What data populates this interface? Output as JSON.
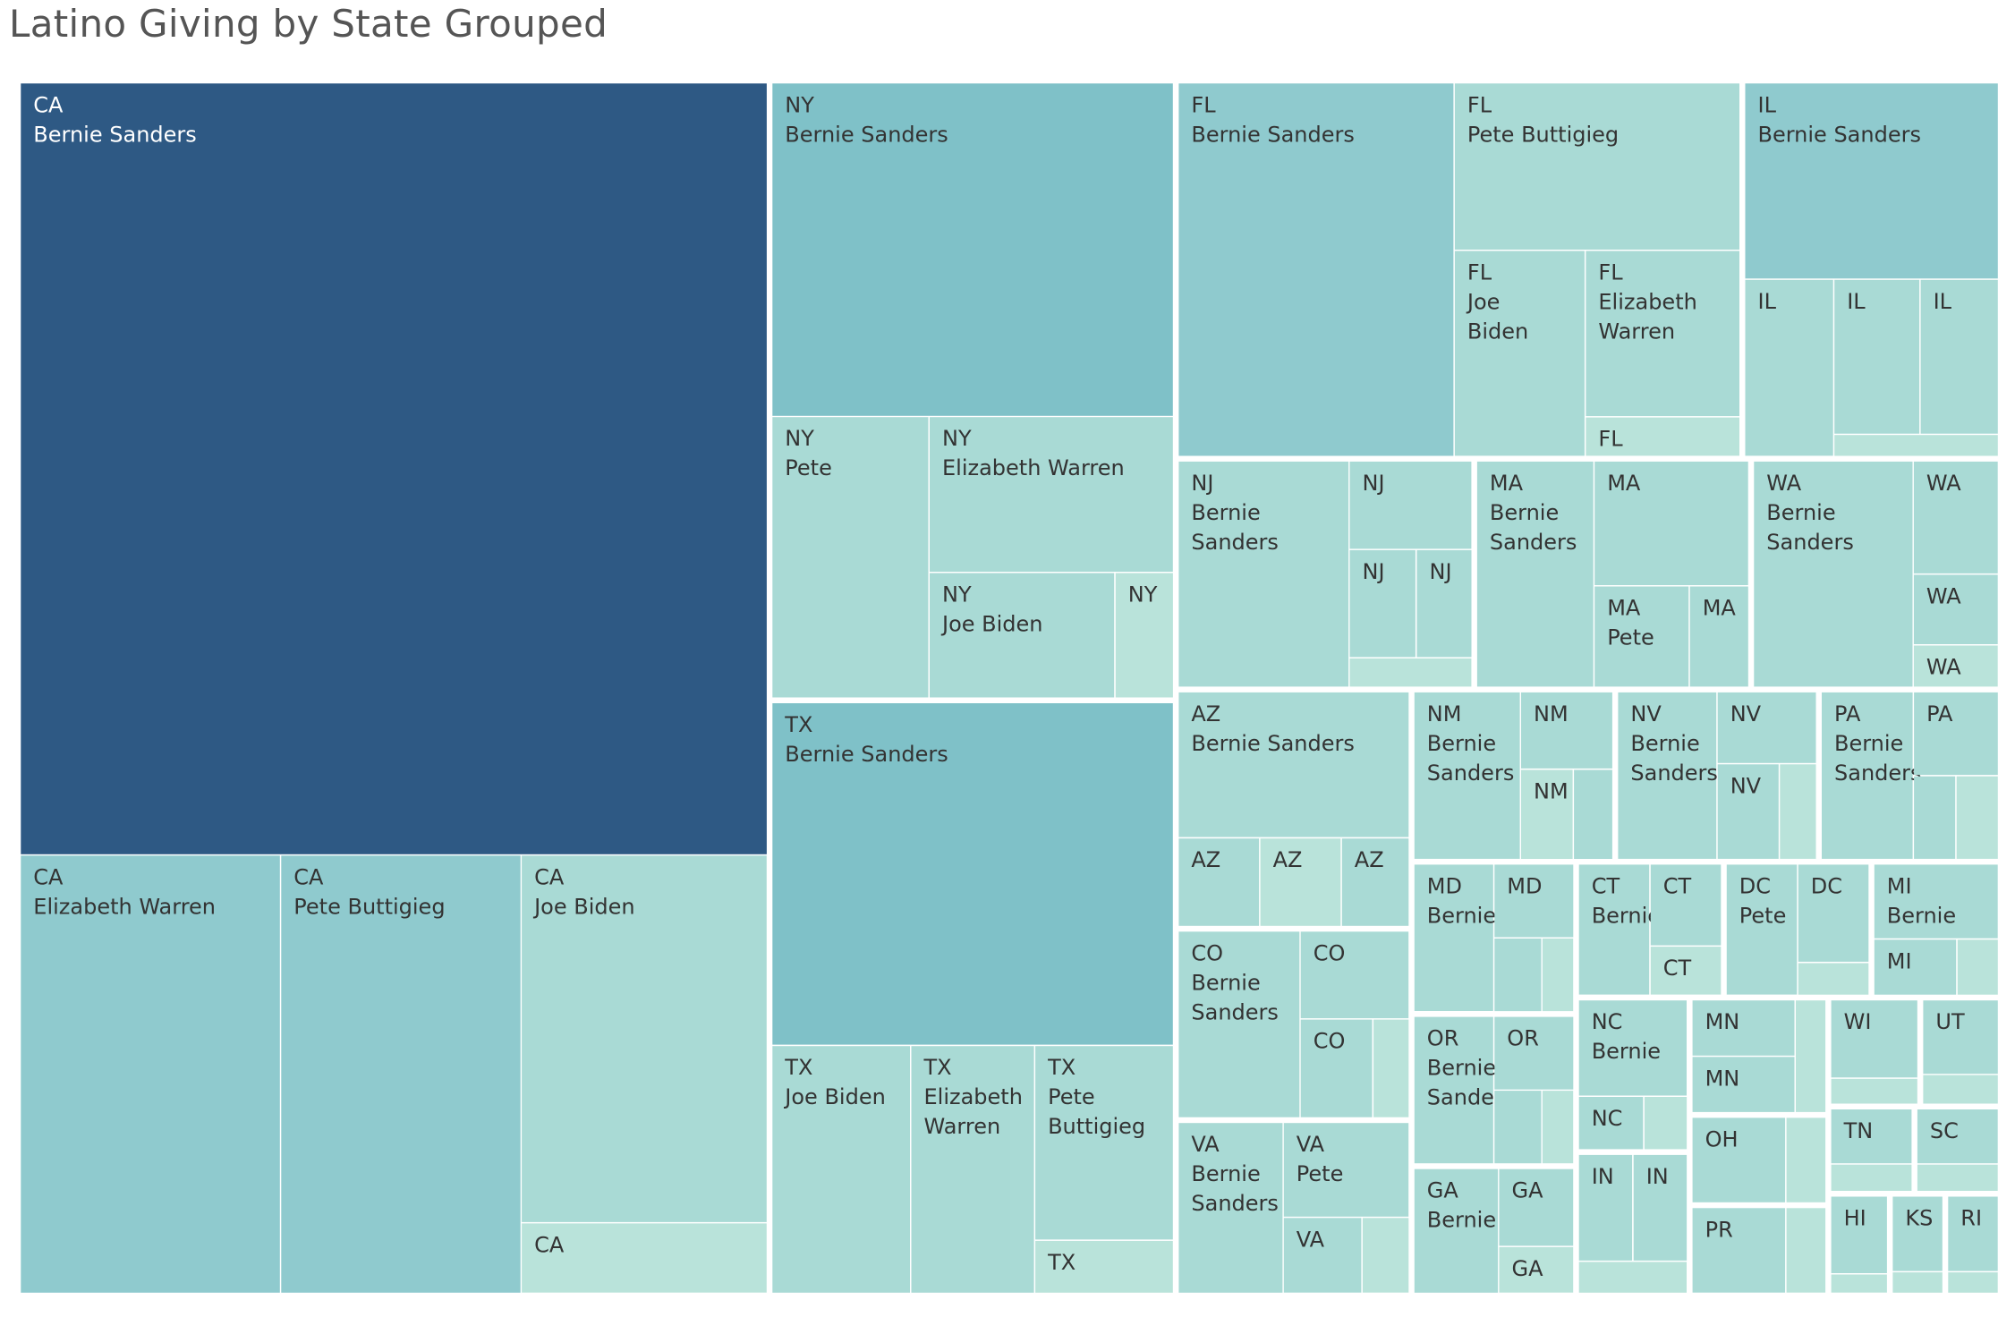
{
  "title": "Latino Giving by State Grouped",
  "colors": {
    "darkest": "#2E5984",
    "dark": "#7FC1C8",
    "mid": "#8FCACE",
    "light": "#A9DAD5",
    "lightest": "#B9E3DA",
    "cell_border": "#ffffff",
    "label_on_dark": "#ffffff",
    "label_on_light": "#333333"
  },
  "chart_data": {
    "type": "treemap",
    "grouping": "state",
    "size_measure": "giving",
    "groups": [
      {
        "state": "CA",
        "candidates": [
          {
            "name": "Bernie Sanders",
            "label": "Bernie Sanders",
            "value": 46.5,
            "shade": "darkest"
          },
          {
            "name": "Elizabeth Warren",
            "label": "Elizabeth Warren",
            "value": 9.2,
            "shade": "mid"
          },
          {
            "name": "Pete Buttigieg",
            "label": "Pete Buttigieg",
            "value": 8.5,
            "shade": "mid"
          },
          {
            "name": "Joe Biden",
            "label": "Joe Biden",
            "value": 7.3,
            "shade": "light"
          },
          {
            "name": "",
            "label": "",
            "value": 1.4,
            "shade": "lightest"
          }
        ]
      },
      {
        "state": "TX",
        "candidates": [
          {
            "name": "Bernie Sanders",
            "label": "Bernie Sanders",
            "value": 11.2,
            "shade": "dark"
          },
          {
            "name": "Elizabeth Warren",
            "label": "Elizabeth Warren",
            "value": 2.5,
            "shade": "light"
          },
          {
            "name": "Pete Buttigieg",
            "label": "Pete Buttigieg",
            "value": 2.2,
            "shade": "light"
          },
          {
            "name": "Joe Biden",
            "label": "Joe Biden",
            "value": 2.8,
            "shade": "light"
          },
          {
            "name": "",
            "label": "",
            "value": 0.6,
            "shade": "lightest"
          }
        ]
      },
      {
        "state": "NY",
        "candidates": [
          {
            "name": "Bernie Sanders",
            "label": "Bernie Sanders",
            "value": 10.9,
            "shade": "dark"
          },
          {
            "name": "Elizabeth Warren",
            "label": "Elizabeth Warren",
            "value": 3.1,
            "shade": "light"
          },
          {
            "name": "Pete",
            "label": "Pete",
            "value": 3.6,
            "shade": "light"
          },
          {
            "name": "Joe Biden",
            "label": "Joe Biden",
            "value": 1.9,
            "shade": "light"
          },
          {
            "name": "",
            "label": "",
            "value": 0.6,
            "shade": "lightest"
          }
        ]
      },
      {
        "state": "FL",
        "candidates": [
          {
            "name": "Bernie Sanders",
            "label": "Bernie Sanders",
            "value": 8.4,
            "shade": "mid"
          },
          {
            "name": "Pete Buttigieg",
            "label": "Pete Buttigieg",
            "value": 3.9,
            "shade": "light"
          },
          {
            "name": "Elizabeth Warren",
            "label": "Elizabeth Warren",
            "value": 2.1,
            "shade": "light"
          },
          {
            "name": "Joe Biden",
            "label": "Joe Biden",
            "value": 2.2,
            "shade": "light"
          },
          {
            "name": "",
            "label": "",
            "value": 0.5,
            "shade": "lightest"
          }
        ]
      },
      {
        "state": "IL",
        "candidates": [
          {
            "name": "Bernie Sanders",
            "label": "Bernie Sanders",
            "value": 4.1,
            "shade": "mid"
          },
          {
            "name": "",
            "label": "",
            "value": 1.3,
            "shade": "light"
          },
          {
            "name": "",
            "label": "",
            "value": 1.0,
            "shade": "light"
          },
          {
            "name": "",
            "label": "",
            "value": 1.1,
            "shade": "light"
          },
          {
            "name": "",
            "label": "",
            "value": 0.3,
            "shade": "lightest"
          }
        ]
      },
      {
        "state": "NJ",
        "candidates": [
          {
            "name": "Bernie Sanders",
            "label": "Bernie Sanders",
            "value": 3.2,
            "shade": "light"
          },
          {
            "name": "",
            "label": "",
            "value": 0.9,
            "shade": "light"
          },
          {
            "name": "",
            "label": "",
            "value": 0.6,
            "shade": "light"
          },
          {
            "name": "",
            "label": "",
            "value": 0.5,
            "shade": "light"
          },
          {
            "name": "",
            "label": "",
            "value": 0.3,
            "shade": "lightest"
          }
        ]
      },
      {
        "state": "WA",
        "candidates": [
          {
            "name": "Bernie Sanders",
            "label": "Bernie Sanders",
            "value": 3.0,
            "shade": "light"
          },
          {
            "name": "",
            "label": "",
            "value": 0.8,
            "shade": "light"
          },
          {
            "name": "",
            "label": "",
            "value": 0.5,
            "shade": "light"
          },
          {
            "name": "",
            "label": "",
            "value": 0.3,
            "shade": "lightest"
          }
        ]
      },
      {
        "state": "MA",
        "candidates": [
          {
            "name": "Bernie Sanders",
            "label": "Bernie Sanders",
            "value": 2.2,
            "shade": "light"
          },
          {
            "name": "",
            "label": "",
            "value": 1.6,
            "shade": "light"
          },
          {
            "name": "Pete",
            "label": "Pete",
            "value": 0.8,
            "shade": "light"
          },
          {
            "name": "",
            "label": "",
            "value": 0.5,
            "shade": "light"
          }
        ]
      },
      {
        "state": "AZ",
        "candidates": [
          {
            "name": "Bernie Sanders",
            "label": "Bernie Sanders",
            "value": 2.8,
            "shade": "light"
          },
          {
            "name": "",
            "label": "",
            "value": 0.6,
            "shade": "light"
          },
          {
            "name": "",
            "label": "",
            "value": 0.5,
            "shade": "light"
          },
          {
            "name": "",
            "label": "",
            "value": 0.6,
            "shade": "lightest"
          }
        ]
      },
      {
        "state": "CO",
        "candidates": [
          {
            "name": "Bernie Sanders",
            "label": "Bernie Sanders",
            "value": 1.9,
            "shade": "light"
          },
          {
            "name": "",
            "label": "",
            "value": 0.8,
            "shade": "light"
          },
          {
            "name": "",
            "label": "",
            "value": 0.6,
            "shade": "light"
          },
          {
            "name": "",
            "label": "",
            "value": 0.3,
            "shade": "lightest"
          }
        ]
      },
      {
        "state": "VA",
        "candidates": [
          {
            "name": "Bernie Sanders",
            "label": "Bernie Sanders",
            "value": 1.5,
            "shade": "light"
          },
          {
            "name": "Pete",
            "label": "Pete",
            "value": 1.0,
            "shade": "light"
          },
          {
            "name": "",
            "label": "",
            "value": 0.5,
            "shade": "light"
          },
          {
            "name": "",
            "label": "",
            "value": 0.3,
            "shade": "lightest"
          }
        ]
      },
      {
        "state": "NM",
        "candidates": [
          {
            "name": "Bernie Sanders",
            "label": "Bernie Sanders",
            "value": 1.5,
            "shade": "light"
          },
          {
            "name": "",
            "label": "",
            "value": 0.6,
            "shade": "light"
          },
          {
            "name": "",
            "label": "",
            "value": 0.3,
            "shade": "light"
          },
          {
            "name": "",
            "label": "",
            "value": 0.4,
            "shade": "lightest"
          }
        ]
      },
      {
        "state": "NV",
        "candidates": [
          {
            "name": "Bernie Sanders",
            "label": "Bernie Sanders",
            "value": 1.4,
            "shade": "light"
          },
          {
            "name": "",
            "label": "",
            "value": 0.6,
            "shade": "light"
          },
          {
            "name": "",
            "label": "",
            "value": 0.5,
            "shade": "light"
          },
          {
            "name": "",
            "label": "",
            "value": 0.3,
            "shade": "lightest"
          }
        ]
      },
      {
        "state": "PA",
        "candidates": [
          {
            "name": "Bernie Sanders",
            "label": "Bernie Sanders",
            "value": 1.3,
            "shade": "light"
          },
          {
            "name": "",
            "label": "",
            "value": 0.6,
            "shade": "light"
          },
          {
            "name": "",
            "label": "",
            "value": 0.3,
            "shade": "light"
          },
          {
            "name": "",
            "label": "",
            "value": 0.3,
            "shade": "lightest"
          }
        ]
      },
      {
        "state": "MD",
        "candidates": [
          {
            "name": "Bernie",
            "label": "Bernie",
            "value": 1.0,
            "shade": "light"
          },
          {
            "name": "",
            "label": "",
            "value": 0.5,
            "shade": "light"
          },
          {
            "name": "",
            "label": "",
            "value": 0.3,
            "shade": "light"
          },
          {
            "name": "",
            "label": "",
            "value": 0.2,
            "shade": "lightest"
          }
        ]
      },
      {
        "state": "OR",
        "candidates": [
          {
            "name": "Bernie Sanders",
            "label": "Bernie Sanders",
            "value": 1.0,
            "shade": "light"
          },
          {
            "name": "",
            "label": "",
            "value": 0.5,
            "shade": "light"
          },
          {
            "name": "",
            "label": "",
            "value": 0.3,
            "shade": "light"
          },
          {
            "name": "",
            "label": "",
            "value": 0.2,
            "shade": "lightest"
          }
        ]
      },
      {
        "state": "DC",
        "candidates": [
          {
            "name": "Pete",
            "label": "Pete",
            "value": 0.8,
            "shade": "light"
          },
          {
            "name": "",
            "label": "",
            "value": 0.6,
            "shade": "light"
          },
          {
            "name": "",
            "label": "",
            "value": 0.2,
            "shade": "lightest"
          }
        ]
      },
      {
        "state": "NC",
        "candidates": [
          {
            "name": "Bernie",
            "label": "Bernie",
            "value": 0.9,
            "shade": "light"
          },
          {
            "name": "",
            "label": "",
            "value": 0.3,
            "shade": "light"
          },
          {
            "name": "",
            "label": "",
            "value": 0.2,
            "shade": "lightest"
          }
        ]
      },
      {
        "state": "GA",
        "candidates": [
          {
            "name": "Bernie",
            "label": "Bernie",
            "value": 0.9,
            "shade": "light"
          },
          {
            "name": "",
            "label": "",
            "value": 0.5,
            "shade": "light"
          },
          {
            "name": "",
            "label": "",
            "value": 0.3,
            "shade": "lightest"
          }
        ]
      },
      {
        "state": "CT",
        "candidates": [
          {
            "name": "Bernie",
            "label": "Bernie",
            "value": 0.8,
            "shade": "light"
          },
          {
            "name": "",
            "label": "",
            "value": 0.5,
            "shade": "light"
          },
          {
            "name": "",
            "label": "",
            "value": 0.3,
            "shade": "lightest"
          }
        ]
      },
      {
        "state": "MI",
        "candidates": [
          {
            "name": "Bernie",
            "label": "Bernie",
            "value": 0.8,
            "shade": "light"
          },
          {
            "name": "",
            "label": "",
            "value": 0.4,
            "shade": "light"
          },
          {
            "name": "",
            "label": "",
            "value": 0.2,
            "shade": "lightest"
          }
        ]
      },
      {
        "state": "IN",
        "candidates": [
          {
            "name": "",
            "label": "",
            "value": 0.5,
            "shade": "light"
          },
          {
            "name": "",
            "label": "",
            "value": 0.5,
            "shade": "light"
          },
          {
            "name": "",
            "label": "",
            "value": 0.3,
            "shade": "lightest"
          }
        ]
      },
      {
        "state": "MN",
        "candidates": [
          {
            "name": "",
            "label": "",
            "value": 0.5,
            "shade": "light"
          },
          {
            "name": "",
            "label": "",
            "value": 0.5,
            "shade": "light"
          },
          {
            "name": "",
            "label": "",
            "value": 0.3,
            "shade": "lightest"
          }
        ]
      },
      {
        "state": "OH",
        "candidates": [
          {
            "name": "",
            "label": "",
            "value": 0.7,
            "shade": "light"
          },
          {
            "name": "",
            "label": "",
            "value": 0.3,
            "shade": "lightest"
          }
        ]
      },
      {
        "state": "PR",
        "candidates": [
          {
            "name": "",
            "label": "",
            "value": 0.7,
            "shade": "light"
          },
          {
            "name": "",
            "label": "",
            "value": 0.3,
            "shade": "lightest"
          }
        ]
      },
      {
        "state": "WI",
        "candidates": [
          {
            "name": "",
            "label": "",
            "value": 0.6,
            "shade": "light"
          },
          {
            "name": "",
            "label": "",
            "value": 0.2,
            "shade": "lightest"
          }
        ]
      },
      {
        "state": "UT",
        "candidates": [
          {
            "name": "",
            "label": "",
            "value": 0.5,
            "shade": "light"
          },
          {
            "name": "",
            "label": "",
            "value": 0.2,
            "shade": "lightest"
          }
        ]
      },
      {
        "state": "TN",
        "candidates": [
          {
            "name": "",
            "label": "",
            "value": 0.4,
            "shade": "light"
          },
          {
            "name": "",
            "label": "",
            "value": 0.2,
            "shade": "lightest"
          }
        ]
      },
      {
        "state": "SC",
        "candidates": [
          {
            "name": "",
            "label": "",
            "value": 0.4,
            "shade": "light"
          },
          {
            "name": "",
            "label": "",
            "value": 0.2,
            "shade": "lightest"
          }
        ]
      },
      {
        "state": "HI",
        "candidates": [
          {
            "name": "",
            "label": "",
            "value": 0.4,
            "shade": "light"
          },
          {
            "name": "",
            "label": "",
            "value": 0.1,
            "shade": "lightest"
          }
        ]
      },
      {
        "state": "KS",
        "candidates": [
          {
            "name": "",
            "label": "",
            "value": 0.35,
            "shade": "light"
          },
          {
            "name": "",
            "label": "",
            "value": 0.1,
            "shade": "lightest"
          }
        ]
      },
      {
        "state": "RI",
        "candidates": [
          {
            "name": "",
            "label": "",
            "value": 0.35,
            "shade": "light"
          },
          {
            "name": "",
            "label": "",
            "value": 0.1,
            "shade": "lightest"
          }
        ]
      }
    ]
  }
}
